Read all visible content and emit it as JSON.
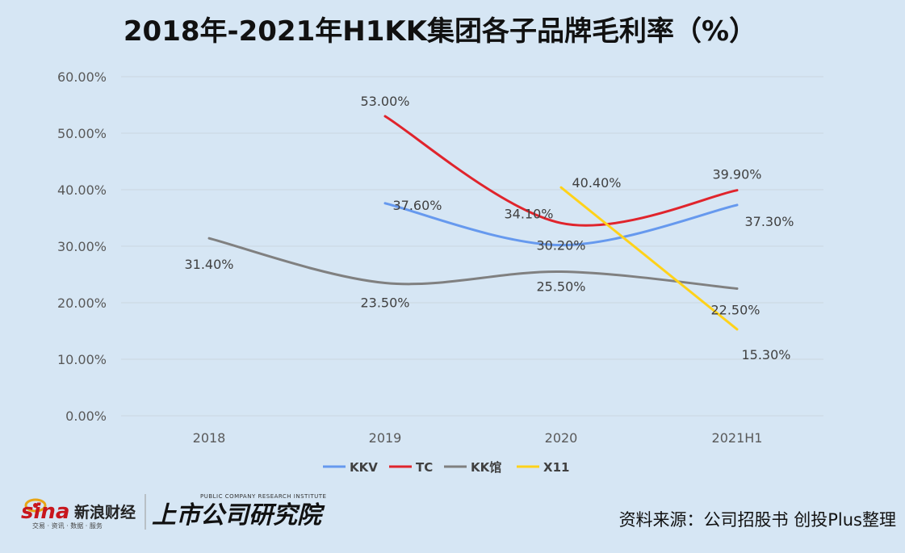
{
  "chart_data": {
    "type": "line",
    "title": "2018年-2021年H1KK集团各子品牌毛利率（%）",
    "categories": [
      "2018",
      "2019",
      "2020",
      "2021H1"
    ],
    "y_ticks": [
      "0.00%",
      "10.00%",
      "20.00%",
      "30.00%",
      "40.00%",
      "50.00%",
      "60.00%"
    ],
    "ylim": [
      0,
      60
    ],
    "grid": true,
    "legend_position": "bottom",
    "series": [
      {
        "name": "KKV",
        "color": "#6699ee",
        "values": [
          null,
          37.6,
          30.2,
          37.3
        ],
        "labels": [
          null,
          "37.60%",
          "30.20%",
          "37.30%"
        ]
      },
      {
        "name": "TC",
        "color": "#e0242c",
        "values": [
          null,
          53.0,
          34.1,
          39.9
        ],
        "labels": [
          null,
          "53.00%",
          "34.10%",
          "39.90%"
        ]
      },
      {
        "name": "KK馆",
        "color": "#808080",
        "values": [
          31.4,
          23.5,
          25.5,
          22.5
        ],
        "labels": [
          "31.40%",
          "23.50%",
          "25.50%",
          "22.50%"
        ]
      },
      {
        "name": "X11",
        "color": "#ffd21a",
        "values": [
          null,
          null,
          40.4,
          15.3
        ],
        "labels": [
          null,
          null,
          "40.40%",
          "15.30%"
        ]
      }
    ]
  },
  "logos": {
    "sina": "sina",
    "sina_cn": "新浪财经",
    "sina_sub": "交易 · 资讯 · 数据 · 服务",
    "institute": "上市公司研究院",
    "institute_en": "PUBLIC COMPANY RESEARCH INSTITUTE"
  },
  "source": "资料来源：公司招股书 创投Plus整理"
}
